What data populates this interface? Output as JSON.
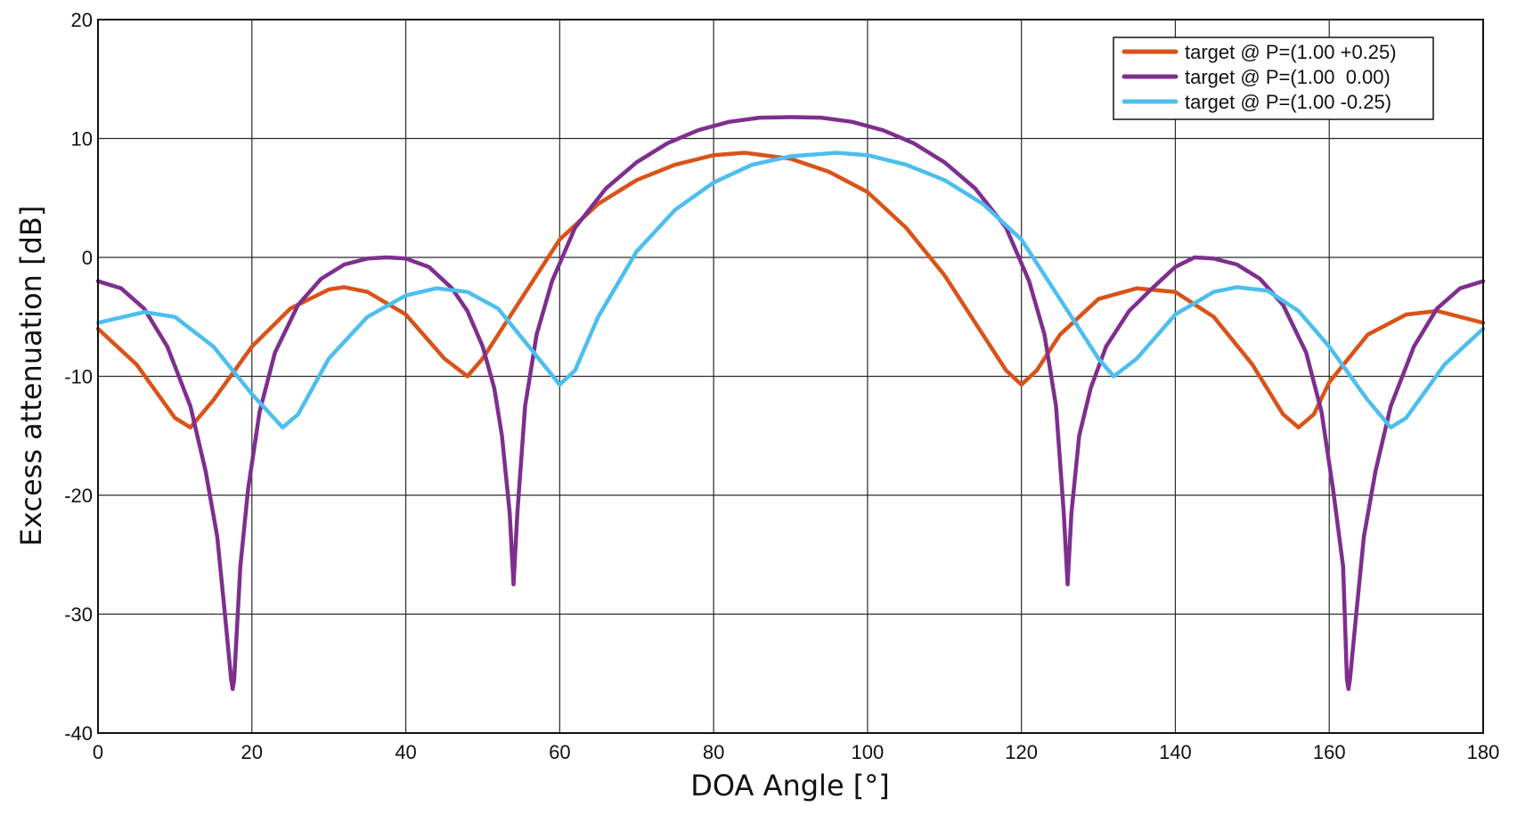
{
  "chart_data": {
    "type": "line",
    "title": "",
    "xlabel": "DOA Angle [°]",
    "ylabel": "Excess attenuation [dB]",
    "xlim": [
      0,
      180
    ],
    "ylim": [
      -40,
      20
    ],
    "xticks": [
      0,
      20,
      40,
      60,
      80,
      100,
      120,
      140,
      160,
      180
    ],
    "yticks": [
      -40,
      -30,
      -20,
      -10,
      0,
      10,
      20
    ],
    "grid": true,
    "legend_position": "top-right",
    "series": [
      {
        "name": "target @ P=(1.00 +0.25)",
        "color": "#d95319",
        "x": [
          0,
          5,
          10,
          12,
          15,
          20,
          25,
          30,
          32,
          35,
          40,
          45,
          48,
          50,
          55,
          60,
          65,
          70,
          75,
          80,
          84,
          90,
          95,
          100,
          105,
          110,
          115,
          118,
          120,
          122,
          125,
          130,
          135,
          140,
          145,
          150,
          154,
          156,
          158,
          160,
          165,
          170,
          174,
          180
        ],
        "y": [
          -6,
          -9,
          -13.5,
          -14.3,
          -12,
          -7.5,
          -4.3,
          -2.7,
          -2.5,
          -2.9,
          -4.8,
          -8.5,
          -10,
          -8.5,
          -3.5,
          1.5,
          4.5,
          6.5,
          7.8,
          8.6,
          8.8,
          8.3,
          7.2,
          5.5,
          2.5,
          -1.5,
          -6.5,
          -9.5,
          -10.7,
          -9.5,
          -6.5,
          -3.5,
          -2.6,
          -2.9,
          -5,
          -9,
          -13.2,
          -14.3,
          -13.2,
          -10.5,
          -6.5,
          -4.8,
          -4.5,
          -5.5
        ]
      },
      {
        "name": "target @ P=(1.00  0.00)",
        "color": "#7e2f8e",
        "x": [
          0,
          3,
          6,
          9,
          12,
          14,
          15.5,
          16.5,
          17.3,
          17.5,
          17.7,
          18.5,
          19.5,
          21,
          23,
          26,
          29,
          32,
          35,
          37.5,
          40,
          43,
          46,
          48,
          50,
          51.5,
          52.5,
          53.5,
          54,
          54.5,
          55.5,
          57,
          59,
          62,
          66,
          70,
          74,
          78,
          82,
          86,
          90,
          94,
          98,
          102,
          106,
          110,
          114,
          118,
          121,
          123,
          124.5,
          125.5,
          126,
          126.5,
          127.5,
          129,
          131,
          134,
          137,
          140,
          142.5,
          145,
          148,
          151,
          154,
          157,
          159,
          160.5,
          161.8,
          162.3,
          162.5,
          162.7,
          163.5,
          164.5,
          166,
          168,
          171,
          174,
          177,
          180
        ],
        "y": [
          -2,
          -2.6,
          -4.3,
          -7.5,
          -12.5,
          -18,
          -23.5,
          -30,
          -35.5,
          -36.3,
          -35.5,
          -26,
          -19.5,
          -13,
          -8,
          -4,
          -1.8,
          -0.6,
          -0.1,
          0,
          -0.1,
          -0.8,
          -2.6,
          -4.5,
          -7.5,
          -11,
          -15,
          -21.5,
          -27.5,
          -21.5,
          -12.5,
          -6.5,
          -2,
          2.5,
          5.8,
          8,
          9.6,
          10.7,
          11.4,
          11.75,
          11.8,
          11.75,
          11.4,
          10.7,
          9.6,
          8,
          5.8,
          2.5,
          -2,
          -6.5,
          -12.5,
          -21.5,
          -27.5,
          -21.5,
          -15,
          -11,
          -7.5,
          -4.5,
          -2.6,
          -0.8,
          0,
          -0.1,
          -0.6,
          -1.8,
          -4,
          -8,
          -13,
          -19.5,
          -26,
          -35.5,
          -36.3,
          -35.5,
          -30,
          -23.5,
          -18,
          -12.5,
          -7.5,
          -4.3,
          -2.6,
          -2
        ]
      },
      {
        "name": "target @ P=(1.00 -0.25)",
        "color": "#4dbeee",
        "x": [
          0,
          6,
          10,
          15,
          20,
          24,
          26,
          30,
          35,
          40,
          44,
          48,
          52,
          56,
          60,
          62,
          65,
          70,
          75,
          80,
          85,
          90,
          96,
          100,
          105,
          110,
          115,
          120,
          125,
          130,
          132,
          135,
          140,
          145,
          148,
          152,
          156,
          160,
          165,
          168,
          170,
          175,
          180
        ],
        "y": [
          -5.5,
          -4.6,
          -5,
          -7.5,
          -11.5,
          -14.3,
          -13.2,
          -8.5,
          -5,
          -3.2,
          -2.6,
          -2.9,
          -4.3,
          -7.5,
          -10.7,
          -9.5,
          -5,
          0.5,
          4,
          6.3,
          7.8,
          8.5,
          8.8,
          8.6,
          7.8,
          6.5,
          4.5,
          1.5,
          -3.5,
          -8.5,
          -10,
          -8.5,
          -4.8,
          -2.9,
          -2.5,
          -2.8,
          -4.5,
          -7.5,
          -12,
          -14.3,
          -13.5,
          -9,
          -6
        ]
      }
    ]
  }
}
